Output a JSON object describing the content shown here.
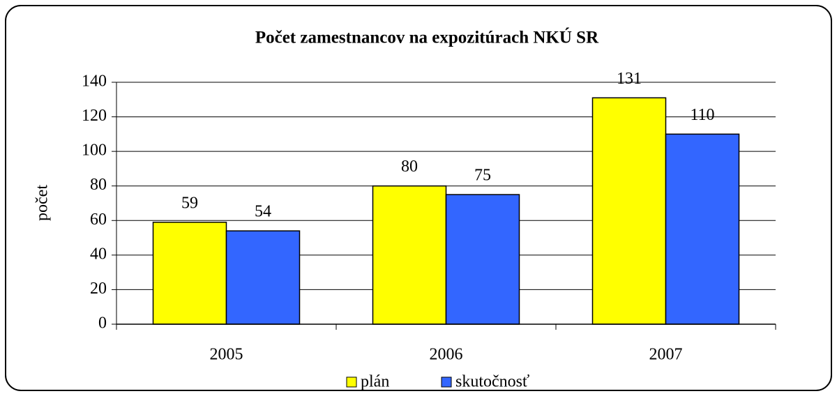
{
  "chart_data": {
    "type": "bar",
    "title": "Počet zamestnancov na expozitúrach NKÚ SR",
    "y_label": "počet",
    "categories": [
      "2005",
      "2006",
      "2007"
    ],
    "series": [
      {
        "name": "plán",
        "color": "#ffff00",
        "values": [
          59,
          80,
          131
        ]
      },
      {
        "name": "skutočnosť",
        "color": "#3366ff",
        "values": [
          54,
          75,
          110
        ]
      }
    ],
    "ylim": [
      0,
      140
    ],
    "yticks": [
      0,
      20,
      40,
      60,
      80,
      100,
      120,
      140
    ],
    "grid": true,
    "legend": "bottom"
  }
}
